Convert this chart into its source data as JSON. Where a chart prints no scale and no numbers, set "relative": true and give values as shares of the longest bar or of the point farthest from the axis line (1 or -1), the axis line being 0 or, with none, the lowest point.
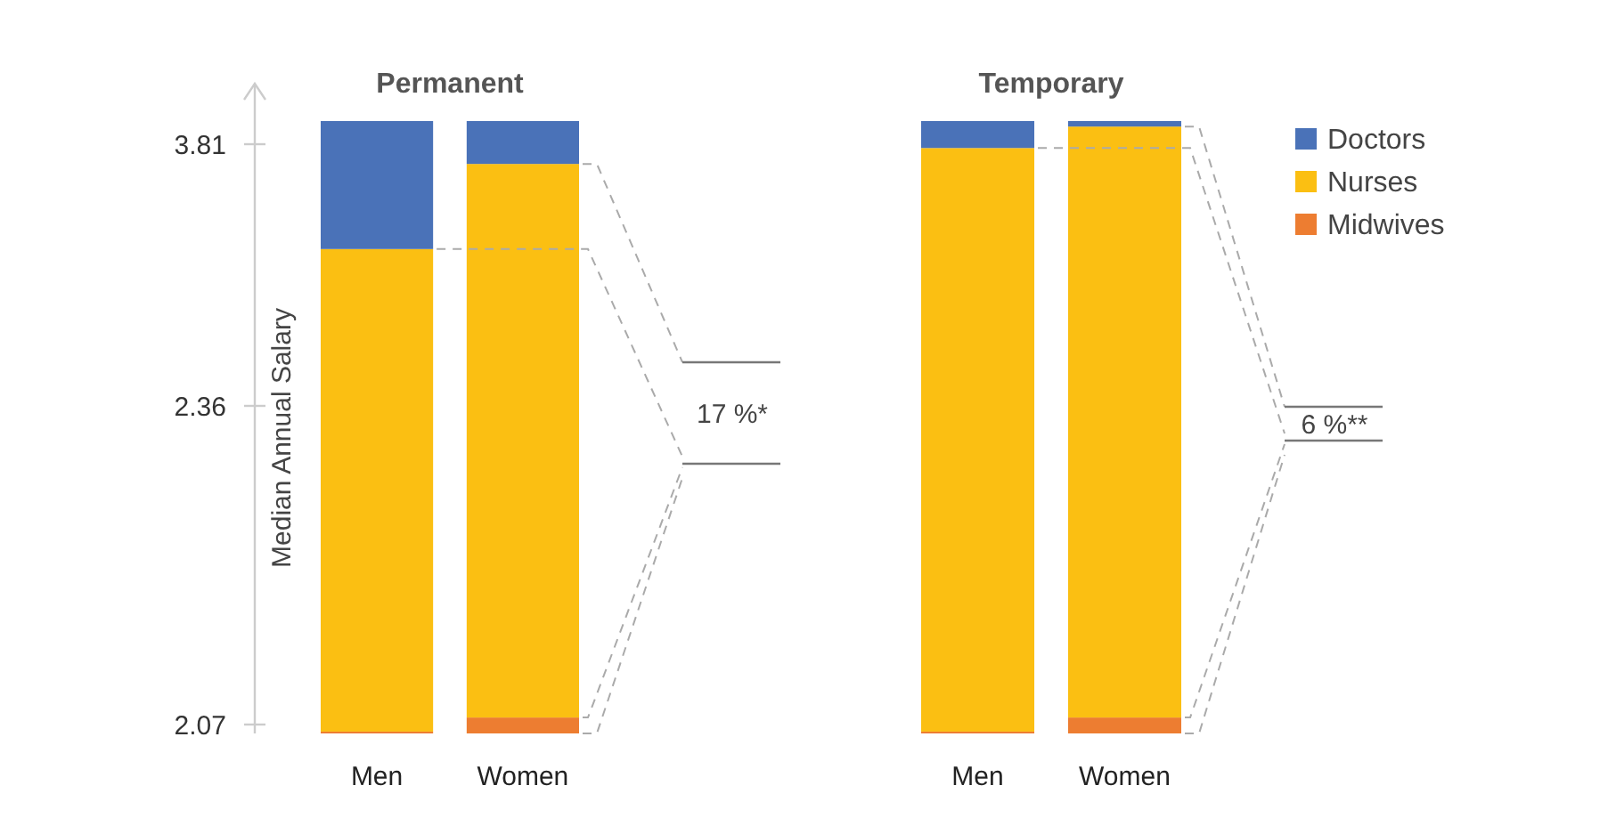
{
  "chart_data": [
    {
      "type": "bar",
      "title": "Permanent",
      "ylabel": "Median Annual Salary",
      "categories": [
        "Men",
        "Women"
      ],
      "stacked": true,
      "relative": true,
      "series": [
        {
          "color": "#ed7d31",
          "values": [
            0.003,
            0.026
          ]
        },
        {
          "color": "#fbbf12",
          "values": [
            0.788,
            0.904
          ]
        },
        {
          "color": "#4a72b8",
          "values": [
            0.209,
            0.07
          ]
        }
      ],
      "annotations": [
        "2.07",
        "2.36",
        "3.81",
        "17 %*"
      ]
    },
    {
      "type": "bar",
      "title": "Temporary",
      "categories": [
        "Men",
        "Women"
      ],
      "stacked": true,
      "relative": true,
      "series": [
        {
          "name": "Midwives",
          "color": "#ed7d31",
          "values": [
            0.003,
            0.026
          ]
        },
        {
          "name": "Nurses",
          "color": "#fbbf12",
          "values": [
            0.953,
            0.965
          ]
        },
        {
          "name": "Doctors",
          "color": "#4a72b8",
          "values": [
            0.044,
            0.009
          ]
        }
      ],
      "annotations": [
        "6 %**"
      ],
      "legend": "top right"
    }
  ]
}
